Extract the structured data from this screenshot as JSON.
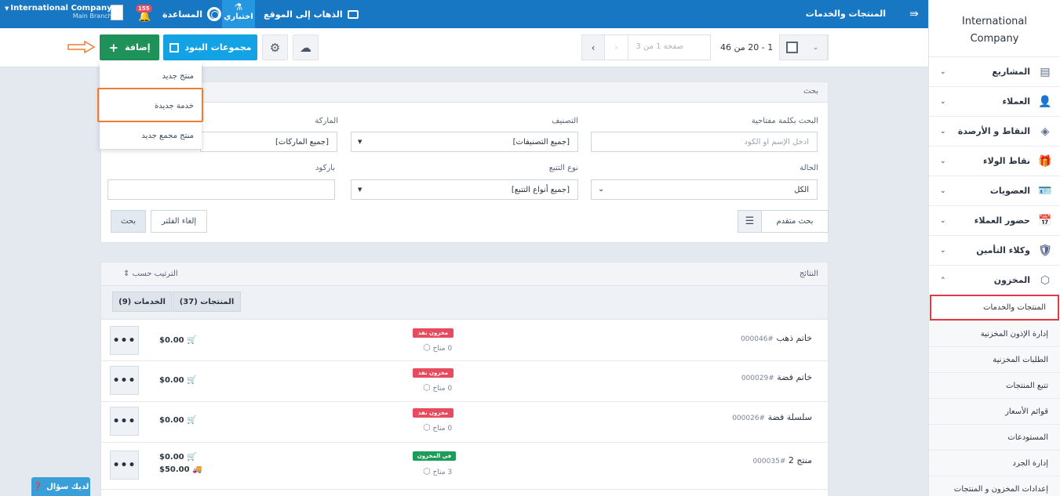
{
  "topbar": {
    "title": "المنتجات والخدمات",
    "go_to_site": "الذهاب إلى الموقع",
    "test_mode": "اختباري",
    "help": "المساعدة",
    "notifications_count": "155",
    "company_name": "International Company",
    "branch": "Main Branch"
  },
  "toolbar": {
    "add_label": "إضافة",
    "item_groups_label": "مجموعات البنود",
    "page_placeholder": "صفحة 1 من 3",
    "range": "1 - 20 من 46"
  },
  "add_menu": {
    "items": [
      "منتج جديد",
      "خدمة جديدة",
      "منتج مجمع جديد"
    ]
  },
  "search": {
    "title": "بحث",
    "keyword_label": "البحث بكلمة مفتاحية",
    "keyword_placeholder": "ادخل الإسم او الكود",
    "category_label": "التصنيف",
    "category_value": "[جميع التصنيفات]",
    "brand_label": "الماركة",
    "brand_value": "[جميع الماركات]",
    "status_label": "الحالة",
    "status_value": "الكل",
    "tracking_label": "نوع التتبع",
    "tracking_value": "[جميع أنواع التتبع]",
    "barcode_label": "باركود",
    "advanced_label": "بحث متقدم",
    "clear_label": "إلغاء الفلتر",
    "search_label": "بحث"
  },
  "results": {
    "title": "النتائج",
    "sort_label": "الترتيب حسب",
    "tabs": [
      "المنتجات (37)",
      "الخدمات (9)"
    ],
    "rows": [
      {
        "name": "خاتم ذهب",
        "code": "#000046",
        "status": "مخزون نفذ",
        "avail": "0 متاح",
        "price": "$0.00",
        "price2": ""
      },
      {
        "name": "خاتم فضة",
        "code": "#000029",
        "status": "مخزون نفذ",
        "avail": "0 متاح",
        "price": "$0.00",
        "price2": ""
      },
      {
        "name": "سلسلة فضة",
        "code": "#000026",
        "status": "مخزون نفذ",
        "avail": "0 متاح",
        "price": "$0.00",
        "price2": ""
      },
      {
        "name": "منتج 2",
        "code": "#000035",
        "status": "في المخزون",
        "avail": "3 متاح",
        "price": "$0.00",
        "price2": "$50.00"
      }
    ],
    "menu_label": "•••"
  },
  "sidebar": {
    "brand_line1": "International",
    "brand_line2": "Company",
    "items": [
      {
        "label": "المشاريع",
        "icon": "clipboard-icon"
      },
      {
        "label": "العملاء",
        "icon": "user-icon"
      },
      {
        "label": "النقاط و الأرصدة",
        "icon": "layers-icon"
      },
      {
        "label": "نقاط الولاء",
        "icon": "gift-icon"
      },
      {
        "label": "العضويات",
        "icon": "id-card-icon"
      },
      {
        "label": "حضور العملاء",
        "icon": "calendar-icon"
      },
      {
        "label": "وكلاء التأمين",
        "icon": "shield-icon"
      },
      {
        "label": "المخزون",
        "icon": "box-icon"
      }
    ],
    "sub_items": [
      "المنتجات والخدمات",
      "إدارة الإذون المخزنية",
      "الطلبات المخزنية",
      "تتبع المنتجات",
      "قوائم الأسعار",
      "المستودعات",
      "إدارة الجرد",
      "إعدادات المخزون و المنتجات"
    ]
  },
  "help_chat": "لديك سؤال",
  "colors": {
    "primary": "#1877c2",
    "add": "#1e9259",
    "groups": "#13a2e4",
    "out_of_stock": "#e74c5e",
    "in_stock": "#1e9c5a",
    "highlight_orange": "#f07c33",
    "highlight_red": "#e53845"
  }
}
